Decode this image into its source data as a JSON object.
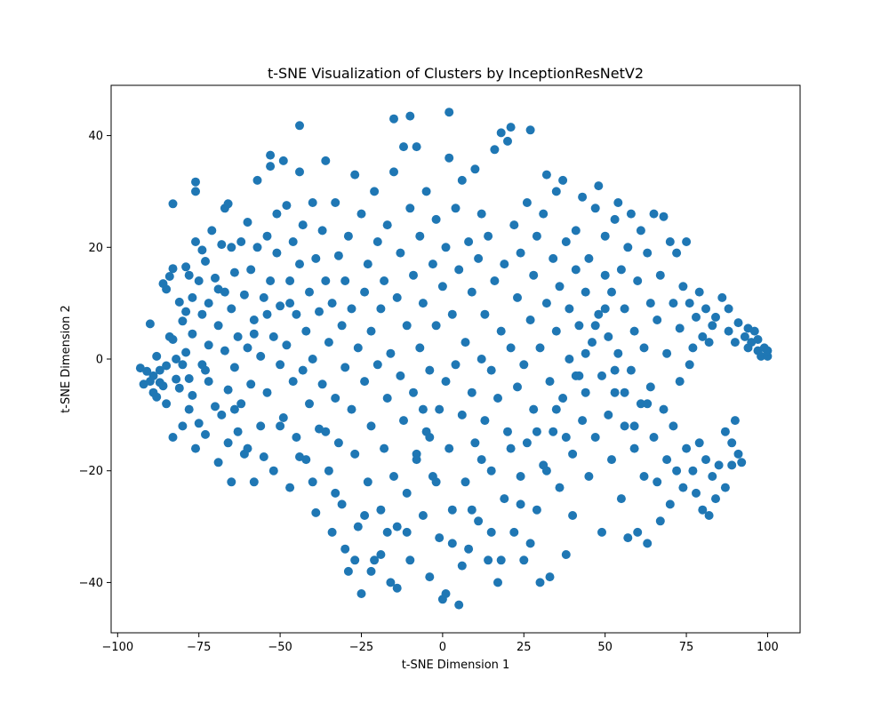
{
  "chart_data": {
    "type": "scatter",
    "title": "t-SNE Visualization of Clusters by InceptionResNetV2",
    "xlabel": "t-SNE Dimension 1",
    "ylabel": "t-SNE Dimension 2",
    "xlim": [
      -102,
      110
    ],
    "ylim": [
      -49,
      49
    ],
    "xticks": [
      -100,
      -75,
      -50,
      -25,
      0,
      25,
      50,
      75,
      100
    ],
    "xtick_labels": [
      "−100",
      "−75",
      "−50",
      "−25",
      "0",
      "25",
      "50",
      "75",
      "100"
    ],
    "yticks": [
      -40,
      -20,
      0,
      20,
      40
    ],
    "ytick_labels": [
      "−40",
      "−20",
      "0",
      "20",
      "40"
    ],
    "grid": false,
    "marker_color": "#1f77b4",
    "points": [
      [
        -93,
        -1.6
      ],
      [
        -92,
        -4.5
      ],
      [
        -91,
        -2.2
      ],
      [
        -90,
        -4.0
      ],
      [
        -90,
        6.3
      ],
      [
        -89,
        -6.0
      ],
      [
        -89,
        -3.0
      ],
      [
        -88,
        0.5
      ],
      [
        -88,
        -6.8
      ],
      [
        -87,
        -2.0
      ],
      [
        -87,
        -4.2
      ],
      [
        -86,
        13.5
      ],
      [
        -85,
        12.5
      ],
      [
        -85,
        -8.0
      ],
      [
        -85,
        -1.2
      ],
      [
        -84,
        14.8
      ],
      [
        -83,
        16.2
      ],
      [
        -83,
        27.8
      ],
      [
        -83,
        3.5
      ],
      [
        -83,
        -14.0
      ],
      [
        -82,
        -3.6
      ],
      [
        -82,
        0.0
      ],
      [
        -81,
        10.2
      ],
      [
        -81,
        -5.2
      ],
      [
        -80,
        6.8
      ],
      [
        -80,
        -12.0
      ],
      [
        -79,
        16.5
      ],
      [
        -79,
        8.5
      ],
      [
        -79,
        1.2
      ],
      [
        -78,
        -9.0
      ],
      [
        -78,
        -3.5
      ],
      [
        -77,
        11.0
      ],
      [
        -77,
        4.5
      ],
      [
        -77,
        -6.5
      ],
      [
        -76,
        21.0
      ],
      [
        -76,
        30.0
      ],
      [
        -76,
        31.7
      ],
      [
        -76,
        -16.0
      ],
      [
        -75,
        14.0
      ],
      [
        -75,
        -11.5
      ],
      [
        -74,
        19.5
      ],
      [
        -74,
        8.0
      ],
      [
        -74,
        -1.0
      ],
      [
        -73,
        17.5
      ],
      [
        -73,
        -13.5
      ],
      [
        -72,
        10.0
      ],
      [
        -72,
        2.5
      ],
      [
        -72,
        -4.0
      ],
      [
        -71,
        23.0
      ],
      [
        -70,
        -8.5
      ],
      [
        -70,
        14.5
      ],
      [
        -69,
        6.0
      ],
      [
        -69,
        -18.5
      ],
      [
        -68,
        20.5
      ],
      [
        -68,
        -10.0
      ],
      [
        -67,
        12.0
      ],
      [
        -67,
        27.0
      ],
      [
        -67,
        1.5
      ],
      [
        -66,
        27.8
      ],
      [
        -66,
        -5.5
      ],
      [
        -66,
        -15.0
      ],
      [
        -65,
        20.0
      ],
      [
        -65,
        9.0
      ],
      [
        -65,
        -22.0
      ],
      [
        -64,
        -1.5
      ],
      [
        -64,
        15.5
      ],
      [
        -63,
        4.0
      ],
      [
        -63,
        -13.0
      ],
      [
        -62,
        21.0
      ],
      [
        -62,
        -8.0
      ],
      [
        -61,
        -17.0
      ],
      [
        -61,
        11.5
      ],
      [
        -60,
        24.5
      ],
      [
        -60,
        2.0
      ],
      [
        -59,
        -4.5
      ],
      [
        -59,
        16.0
      ],
      [
        -58,
        -22.0
      ],
      [
        -58,
        7.0
      ],
      [
        -57,
        20.0
      ],
      [
        -57,
        32.0
      ],
      [
        -56,
        -12.0
      ],
      [
        -56,
        0.5
      ],
      [
        -55,
        -17.5
      ],
      [
        -55,
        11.0
      ],
      [
        -54,
        22.0
      ],
      [
        -54,
        -6.0
      ],
      [
        -53,
        14.0
      ],
      [
        -53,
        36.5
      ],
      [
        -53,
        34.5
      ],
      [
        -52,
        4.0
      ],
      [
        -52,
        -20.0
      ],
      [
        -51,
        19.0
      ],
      [
        -51,
        26.0
      ],
      [
        -50,
        -1.0
      ],
      [
        -50,
        9.5
      ],
      [
        -49,
        35.5
      ],
      [
        -49,
        -10.5
      ],
      [
        -48,
        27.5
      ],
      [
        -48,
        2.5
      ],
      [
        -47,
        14.0
      ],
      [
        -47,
        -23.0
      ],
      [
        -46,
        21.0
      ],
      [
        -46,
        -4.0
      ],
      [
        -45,
        8.0
      ],
      [
        -45,
        -14.0
      ],
      [
        -44,
        33.5
      ],
      [
        -44,
        41.8
      ],
      [
        -44,
        17.0
      ],
      [
        -43,
        -2.0
      ],
      [
        -43,
        24.0
      ],
      [
        -42,
        -18.0
      ],
      [
        -42,
        5.0
      ],
      [
        -41,
        12.0
      ],
      [
        -41,
        -8.0
      ],
      [
        -40,
        28.0
      ],
      [
        -40,
        0.0
      ],
      [
        -39,
        -27.5
      ],
      [
        -39,
        18.0
      ],
      [
        -38,
        8.5
      ],
      [
        -38,
        -12.5
      ],
      [
        -37,
        23.0
      ],
      [
        -37,
        -4.5
      ],
      [
        -36,
        35.5
      ],
      [
        -36,
        14.0
      ],
      [
        -35,
        -20.0
      ],
      [
        -35,
        3.0
      ],
      [
        -34,
        -31.0
      ],
      [
        -34,
        10.0
      ],
      [
        -33,
        28.0
      ],
      [
        -33,
        -7.0
      ],
      [
        -32,
        18.5
      ],
      [
        -32,
        -15.0
      ],
      [
        -31,
        6.0
      ],
      [
        -31,
        -26.0
      ],
      [
        -30,
        14.0
      ],
      [
        -30,
        -1.5
      ],
      [
        -29,
        22.0
      ],
      [
        -29,
        -38.0
      ],
      [
        -28,
        -9.0
      ],
      [
        -28,
        9.0
      ],
      [
        -27,
        33.0
      ],
      [
        -27,
        -17.0
      ],
      [
        -26,
        2.0
      ],
      [
        -26,
        -30.0
      ],
      [
        -25,
        26.0
      ],
      [
        -25,
        -42.0
      ],
      [
        -24,
        12.0
      ],
      [
        -24,
        -4.0
      ],
      [
        -23,
        -22.0
      ],
      [
        -23,
        17.0
      ],
      [
        -22,
        5.0
      ],
      [
        -22,
        -12.0
      ],
      [
        -21,
        30.0
      ],
      [
        -21,
        -36.0
      ],
      [
        -20,
        -1.0
      ],
      [
        -20,
        21.0
      ],
      [
        -19,
        -27.0
      ],
      [
        -19,
        9.0
      ],
      [
        -18,
        -16.0
      ],
      [
        -18,
        14.0
      ],
      [
        -17,
        -7.0
      ],
      [
        -17,
        24.0
      ],
      [
        -16,
        -40.0
      ],
      [
        -16,
        1.0
      ],
      [
        -15,
        33.5
      ],
      [
        -15,
        43.0
      ],
      [
        -15,
        -21.0
      ],
      [
        -14,
        11.0
      ],
      [
        -14,
        -30.0
      ],
      [
        -13,
        -3.0
      ],
      [
        -13,
        19.0
      ],
      [
        -12,
        -11.0
      ],
      [
        -12,
        38.0
      ],
      [
        -11,
        6.0
      ],
      [
        -11,
        -24.0
      ],
      [
        -10,
        43.5
      ],
      [
        -10,
        27.0
      ],
      [
        -10,
        -36.0
      ],
      [
        -9,
        15.0
      ],
      [
        -9,
        -6.0
      ],
      [
        -8,
        38.0
      ],
      [
        -8,
        -17.0
      ],
      [
        -7,
        2.0
      ],
      [
        -7,
        22.0
      ],
      [
        -6,
        -28.0
      ],
      [
        -6,
        10.0
      ],
      [
        -5,
        -13.0
      ],
      [
        -5,
        30.0
      ],
      [
        -4,
        -2.0
      ],
      [
        -4,
        -39.0
      ],
      [
        -3,
        17.0
      ],
      [
        -3,
        -21.0
      ],
      [
        -2,
        6.0
      ],
      [
        -2,
        25.0
      ],
      [
        -1,
        -9.0
      ],
      [
        -1,
        -32.0
      ],
      [
        0,
        13.0
      ],
      [
        0,
        -43.0
      ],
      [
        1,
        -4.0
      ],
      [
        1,
        20.0
      ],
      [
        2,
        36.0
      ],
      [
        2,
        44.2
      ],
      [
        2,
        -16.0
      ],
      [
        3,
        8.0
      ],
      [
        3,
        -27.0
      ],
      [
        4,
        27.0
      ],
      [
        4,
        -1.0
      ],
      [
        5,
        -44.0
      ],
      [
        5,
        16.0
      ],
      [
        6,
        -10.0
      ],
      [
        6,
        32.0
      ],
      [
        7,
        3.0
      ],
      [
        7,
        -22.0
      ],
      [
        8,
        21.0
      ],
      [
        8,
        -34.0
      ],
      [
        9,
        12.0
      ],
      [
        9,
        -6.0
      ],
      [
        10,
        34.0
      ],
      [
        10,
        -15.0
      ],
      [
        11,
        18.0
      ],
      [
        11,
        -29.0
      ],
      [
        12,
        0.0
      ],
      [
        12,
        26.0
      ],
      [
        13,
        -11.0
      ],
      [
        13,
        8.0
      ],
      [
        14,
        -36.0
      ],
      [
        14,
        22.0
      ],
      [
        15,
        -2.0
      ],
      [
        15,
        -20.0
      ],
      [
        16,
        14.0
      ],
      [
        16,
        37.5
      ],
      [
        17,
        -7.0
      ],
      [
        17,
        -40.0
      ],
      [
        18,
        5.0
      ],
      [
        18,
        40.5
      ],
      [
        19,
        -25.0
      ],
      [
        19,
        17.0
      ],
      [
        20,
        39.0
      ],
      [
        20,
        -13.0
      ],
      [
        21,
        2.0
      ],
      [
        21,
        41.5
      ],
      [
        22,
        24.0
      ],
      [
        22,
        -31.0
      ],
      [
        23,
        -5.0
      ],
      [
        23,
        11.0
      ],
      [
        24,
        -21.0
      ],
      [
        24,
        19.0
      ],
      [
        25,
        -36.0
      ],
      [
        25,
        -1.0
      ],
      [
        26,
        28.0
      ],
      [
        26,
        -15.0
      ],
      [
        27,
        7.0
      ],
      [
        27,
        41.0
      ],
      [
        28,
        -9.0
      ],
      [
        28,
        15.0
      ],
      [
        29,
        -27.0
      ],
      [
        29,
        22.0
      ],
      [
        30,
        -40.0
      ],
      [
        30,
        2.0
      ],
      [
        31,
        -19.0
      ],
      [
        31,
        26.0
      ],
      [
        32,
        10.0
      ],
      [
        32,
        33.0
      ],
      [
        33,
        -4.0
      ],
      [
        33,
        -39.0
      ],
      [
        34,
        18.0
      ],
      [
        34,
        -13.0
      ],
      [
        35,
        5.0
      ],
      [
        35,
        30.0
      ],
      [
        36,
        -23.0
      ],
      [
        36,
        13.0
      ],
      [
        37,
        32.0
      ],
      [
        37,
        -7.0
      ],
      [
        38,
        21.0
      ],
      [
        38,
        -35.0
      ],
      [
        39,
        0.0
      ],
      [
        39,
        9.0
      ],
      [
        40,
        -17.0
      ],
      [
        40,
        -28.0
      ],
      [
        41,
        16.0
      ],
      [
        41,
        23.0
      ],
      [
        42,
        -3.0
      ],
      [
        42,
        6.0
      ],
      [
        43,
        -11.0
      ],
      [
        43,
        29.0
      ],
      [
        44,
        12.0
      ],
      [
        44,
        -6.0
      ],
      [
        45,
        18.0
      ],
      [
        45,
        -21.0
      ],
      [
        46,
        3.0
      ],
      [
        47,
        27.0
      ],
      [
        47,
        -14.0
      ],
      [
        48,
        8.0
      ],
      [
        48,
        31.0
      ],
      [
        49,
        -3.0
      ],
      [
        49,
        -31.0
      ],
      [
        50,
        15.0
      ],
      [
        50,
        22.0
      ],
      [
        51,
        -10.0
      ],
      [
        51,
        4.0
      ],
      [
        52,
        -18.0
      ],
      [
        52,
        12.0
      ],
      [
        53,
        25.0
      ],
      [
        53,
        -6.0
      ],
      [
        54,
        1.0
      ],
      [
        54,
        28.0
      ],
      [
        55,
        -25.0
      ],
      [
        55,
        16.0
      ],
      [
        56,
        -12.0
      ],
      [
        56,
        9.0
      ],
      [
        57,
        -32.0
      ],
      [
        57,
        20.0
      ],
      [
        58,
        -2.0
      ],
      [
        58,
        26.0
      ],
      [
        59,
        -16.0
      ],
      [
        59,
        5.0
      ],
      [
        60,
        -31.0
      ],
      [
        60,
        14.0
      ],
      [
        61,
        -8.0
      ],
      [
        61,
        23.0
      ],
      [
        62,
        -21.0
      ],
      [
        62,
        2.0
      ],
      [
        63,
        -33.0
      ],
      [
        63,
        19.0
      ],
      [
        64,
        -5.0
      ],
      [
        64,
        10.0
      ],
      [
        65,
        -14.0
      ],
      [
        65,
        26.0
      ],
      [
        66,
        -22.0
      ],
      [
        66,
        7.0
      ],
      [
        67,
        -29.0
      ],
      [
        67,
        15.0
      ],
      [
        68,
        -9.0
      ],
      [
        68,
        25.5
      ],
      [
        69,
        -18.0
      ],
      [
        69,
        1.0
      ],
      [
        70,
        -26.0
      ],
      [
        70,
        21.0
      ],
      [
        71,
        -12.0
      ],
      [
        71,
        10.0
      ],
      [
        72,
        -20.0
      ],
      [
        72,
        19.0
      ],
      [
        73,
        -4.0
      ],
      [
        73,
        5.5
      ],
      [
        74,
        -23.0
      ],
      [
        74,
        13.0
      ],
      [
        75,
        -16.0
      ],
      [
        75,
        21.0
      ],
      [
        76,
        -1.0
      ],
      [
        76,
        10.0
      ],
      [
        77,
        -20.0
      ],
      [
        77,
        2.0
      ],
      [
        78,
        -24.0
      ],
      [
        78,
        7.5
      ],
      [
        79,
        -15.0
      ],
      [
        79,
        12.0
      ],
      [
        80,
        -27.0
      ],
      [
        80,
        4.0
      ],
      [
        81,
        -18.0
      ],
      [
        81,
        9.0
      ],
      [
        82,
        -28.0
      ],
      [
        82,
        3.0
      ],
      [
        83,
        -21.0
      ],
      [
        83,
        6.0
      ],
      [
        84,
        -25.0
      ],
      [
        84,
        7.5
      ],
      [
        85,
        -19.0
      ],
      [
        86,
        11.0
      ],
      [
        87,
        -13.0
      ],
      [
        87,
        -23.0
      ],
      [
        88,
        5.0
      ],
      [
        88,
        9.0
      ],
      [
        89,
        -15.0
      ],
      [
        89,
        -19.0
      ],
      [
        90,
        3.0
      ],
      [
        90,
        -11.0
      ],
      [
        91,
        6.5
      ],
      [
        91,
        -17.0
      ],
      [
        92,
        -18.5
      ],
      [
        93,
        4.0
      ],
      [
        94,
        5.5
      ],
      [
        94,
        2.0
      ],
      [
        95,
        3.0
      ],
      [
        96,
        5.0
      ],
      [
        97,
        1.5
      ],
      [
        97,
        3.5
      ],
      [
        98,
        0.5
      ],
      [
        99,
        2.0
      ],
      [
        100,
        0.5
      ],
      [
        100,
        1.5
      ],
      [
        -86,
        -4.8
      ],
      [
        -84,
        4.0
      ],
      [
        -80,
        -1.0
      ],
      [
        -78,
        15.0
      ],
      [
        -73,
        -2.0
      ],
      [
        -69,
        12.5
      ],
      [
        -64,
        -9.0
      ],
      [
        -60,
        -16.0
      ],
      [
        -58,
        4.5
      ],
      [
        -54,
        8.0
      ],
      [
        -50,
        -12.0
      ],
      [
        -47,
        10.0
      ],
      [
        -44,
        -17.5
      ],
      [
        -40,
        -22.0
      ],
      [
        -36,
        -13.0
      ],
      [
        -33,
        -24.0
      ],
      [
        -30,
        -34.0
      ],
      [
        -27,
        -36.0
      ],
      [
        -24,
        -28.0
      ],
      [
        -22,
        -38.0
      ],
      [
        -19,
        -35.0
      ],
      [
        -17,
        -31.0
      ],
      [
        -14,
        -41.0
      ],
      [
        -11,
        -31.0
      ],
      [
        -8,
        -18.0
      ],
      [
        -6,
        -9.0
      ],
      [
        -4,
        -14.0
      ],
      [
        -2,
        -22.0
      ],
      [
        1,
        -42.0
      ],
      [
        3,
        -33.0
      ],
      [
        6,
        -37.0
      ],
      [
        9,
        -27.0
      ],
      [
        12,
        -18.0
      ],
      [
        15,
        -31.0
      ],
      [
        18,
        -36.0
      ],
      [
        21,
        -16.0
      ],
      [
        24,
        -26.0
      ],
      [
        27,
        -33.0
      ],
      [
        29,
        -13.0
      ],
      [
        32,
        -20.0
      ],
      [
        35,
        -9.0
      ],
      [
        38,
        -14.0
      ],
      [
        41,
        -3.0
      ],
      [
        44,
        1.0
      ],
      [
        47,
        6.0
      ],
      [
        50,
        9.0
      ],
      [
        53,
        -2.0
      ],
      [
        56,
        -6.0
      ],
      [
        59,
        -12.0
      ],
      [
        63,
        -8.0
      ]
    ]
  }
}
